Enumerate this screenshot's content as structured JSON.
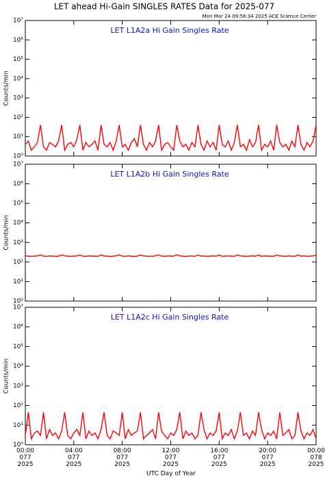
{
  "title": "LET ahead Hi-Gain SINGLES RATES Data for 2025-077",
  "subtitle": "Mon Mar 24 09:56:34 2025 ACE Science Center",
  "x_label": "UTC Day of Year",
  "chart_data": [
    {
      "type": "line",
      "title": "LET L1A2a Hi Gain Singles Rate",
      "y_label": "Counts/min",
      "log_y": true,
      "xlim": [
        0,
        24
      ],
      "ylim": [
        1,
        10000000
      ],
      "yticks": [
        {
          "value": 1,
          "label": "10⁰"
        },
        {
          "value": 10,
          "label": "10¹"
        },
        {
          "value": 100,
          "label": "10²"
        },
        {
          "value": 1000,
          "label": "10³"
        },
        {
          "value": 10000,
          "label": "10⁴"
        },
        {
          "value": 100000,
          "label": "10⁵"
        },
        {
          "value": 1000000,
          "label": "10⁶"
        },
        {
          "value": 10000000,
          "label": "10⁷"
        }
      ],
      "x": [
        0,
        0.25,
        0.5,
        0.75,
        1,
        1.25,
        1.5,
        1.75,
        2,
        2.25,
        2.5,
        2.75,
        3,
        3.25,
        3.5,
        3.75,
        4,
        4.25,
        4.5,
        4.75,
        5,
        5.25,
        5.5,
        5.75,
        6,
        6.25,
        6.5,
        6.75,
        7,
        7.25,
        7.5,
        7.75,
        8,
        8.25,
        8.5,
        8.75,
        9,
        9.25,
        9.5,
        9.75,
        10,
        10.25,
        10.5,
        10.75,
        11,
        11.25,
        11.5,
        11.75,
        12,
        12.25,
        12.5,
        12.75,
        13,
        13.25,
        13.5,
        13.75,
        14,
        14.25,
        14.5,
        14.75,
        15,
        15.25,
        15.5,
        15.75,
        16,
        16.25,
        16.5,
        16.75,
        17,
        17.25,
        17.5,
        17.75,
        18,
        18.25,
        18.5,
        18.75,
        19,
        19.25,
        19.5,
        19.75,
        20,
        20.25,
        20.5,
        20.75,
        21,
        21.25,
        21.5,
        21.75,
        22,
        22.25,
        22.5,
        22.75,
        23,
        23.25,
        23.5,
        23.75,
        24
      ],
      "series": [
        {
          "color": "#ff0000",
          "values": [
            4,
            6,
            2,
            3,
            5,
            40,
            3,
            2,
            5,
            4,
            3,
            6,
            40,
            2,
            4,
            5,
            3,
            7,
            40,
            2,
            5,
            3,
            4,
            6,
            2,
            40,
            4,
            3,
            5,
            2,
            6,
            40,
            3,
            4,
            2,
            5,
            8,
            3,
            40,
            4,
            2,
            5,
            3,
            6,
            40,
            2,
            4,
            5,
            3,
            2,
            40,
            6,
            3,
            4,
            2,
            5,
            3,
            40,
            4,
            2,
            6,
            3,
            5,
            2,
            40,
            4,
            3,
            6,
            2,
            5,
            40,
            3,
            4,
            2,
            7,
            3,
            5,
            40,
            2,
            4,
            3,
            6,
            2,
            40,
            5,
            3,
            4,
            2,
            6,
            3,
            40,
            4,
            2,
            5,
            3,
            6,
            40
          ]
        }
      ]
    },
    {
      "type": "line",
      "title": "LET L1A2b Hi Gain Singles Rate",
      "y_label": "Counts/min",
      "log_y": true,
      "xlim": [
        0,
        24
      ],
      "ylim": [
        1,
        10000000
      ],
      "yticks": [
        {
          "value": 1,
          "label": "10⁰"
        },
        {
          "value": 10,
          "label": "10¹"
        },
        {
          "value": 100,
          "label": "10²"
        },
        {
          "value": 1000,
          "label": "10³"
        },
        {
          "value": 10000,
          "label": "10⁴"
        },
        {
          "value": 100000,
          "label": "10⁵"
        },
        {
          "value": 1000000,
          "label": "10⁶"
        },
        {
          "value": 10000000,
          "label": "10⁷"
        }
      ],
      "x": [
        0,
        0.25,
        0.5,
        0.75,
        1,
        1.25,
        1.5,
        1.75,
        2,
        2.25,
        2.5,
        2.75,
        3,
        3.25,
        3.5,
        3.75,
        4,
        4.25,
        4.5,
        4.75,
        5,
        5.25,
        5.5,
        5.75,
        6,
        6.25,
        6.5,
        6.75,
        7,
        7.25,
        7.5,
        7.75,
        8,
        8.25,
        8.5,
        8.75,
        9,
        9.25,
        9.5,
        9.75,
        10,
        10.25,
        10.5,
        10.75,
        11,
        11.25,
        11.5,
        11.75,
        12,
        12.25,
        12.5,
        12.75,
        13,
        13.25,
        13.5,
        13.75,
        14,
        14.25,
        14.5,
        14.75,
        15,
        15.25,
        15.5,
        15.75,
        16,
        16.25,
        16.5,
        16.75,
        17,
        17.25,
        17.5,
        17.75,
        18,
        18.25,
        18.5,
        18.75,
        19,
        19.25,
        19.5,
        19.75,
        20,
        20.25,
        20.5,
        20.75,
        21,
        21.25,
        21.5,
        21.75,
        22,
        22.25,
        22.5,
        22.75,
        23,
        23.25,
        23.5,
        23.75,
        24
      ],
      "series": [
        {
          "color": "#ff0000",
          "values": [
            205,
            200,
            195,
            200,
            205,
            230,
            200,
            195,
            205,
            200,
            195,
            200,
            230,
            205,
            200,
            195,
            200,
            205,
            230,
            200,
            195,
            205,
            200,
            200,
            195,
            230,
            205,
            200,
            195,
            200,
            205,
            230,
            200,
            195,
            205,
            200,
            195,
            200,
            230,
            205,
            200,
            195,
            200,
            205,
            230,
            200,
            195,
            205,
            200,
            200,
            230,
            205,
            200,
            195,
            200,
            205,
            195,
            230,
            200,
            205,
            195,
            200,
            205,
            200,
            230,
            195,
            200,
            205,
            200,
            195,
            230,
            205,
            200,
            195,
            200,
            205,
            200,
            230,
            195,
            205,
            200,
            200,
            195,
            230,
            205,
            200,
            195,
            205,
            200,
            195,
            230,
            200,
            205,
            195,
            200,
            205,
            230
          ]
        }
      ]
    },
    {
      "type": "line",
      "title": "LET L1A2c Hi Gain Singles Rate",
      "y_label": "Counts/min",
      "log_y": true,
      "xlim": [
        0,
        24
      ],
      "ylim": [
        1,
        10000000
      ],
      "yticks": [
        {
          "value": 1,
          "label": "10⁰"
        },
        {
          "value": 10,
          "label": "10¹"
        },
        {
          "value": 100,
          "label": "10²"
        },
        {
          "value": 1000,
          "label": "10³"
        },
        {
          "value": 10000,
          "label": "10⁴"
        },
        {
          "value": 100000,
          "label": "10⁵"
        },
        {
          "value": 1000000,
          "label": "10⁶"
        },
        {
          "value": 10000000,
          "label": "10⁷"
        }
      ],
      "xticks": [
        {
          "value": 0,
          "label": "00:00\n077\n2025"
        },
        {
          "value": 4,
          "label": "04:00\n077\n2025"
        },
        {
          "value": 8,
          "label": "08:00\n077\n2025"
        },
        {
          "value": 12,
          "label": "12:00\n077\n2025"
        },
        {
          "value": 16,
          "label": "16:00\n077\n2025"
        },
        {
          "value": 20,
          "label": "20:00\n077\n2025"
        },
        {
          "value": 24,
          "label": "00:00\n078\n2025"
        }
      ],
      "x": [
        0,
        0.25,
        0.5,
        0.75,
        1,
        1.25,
        1.5,
        1.75,
        2,
        2.25,
        2.5,
        2.75,
        3,
        3.25,
        3.5,
        3.75,
        4,
        4.25,
        4.5,
        4.75,
        5,
        5.25,
        5.5,
        5.75,
        6,
        6.25,
        6.5,
        6.75,
        7,
        7.25,
        7.5,
        7.75,
        8,
        8.25,
        8.5,
        8.75,
        9,
        9.25,
        9.5,
        9.75,
        10,
        10.25,
        10.5,
        10.75,
        11,
        11.25,
        11.5,
        11.75,
        12,
        12.25,
        12.5,
        12.75,
        13,
        13.25,
        13.5,
        13.75,
        14,
        14.25,
        14.5,
        14.75,
        15,
        15.25,
        15.5,
        15.75,
        16,
        16.25,
        16.5,
        16.75,
        17,
        17.25,
        17.5,
        17.75,
        18,
        18.25,
        18.5,
        18.75,
        19,
        19.25,
        19.5,
        19.75,
        20,
        20.25,
        20.5,
        20.75,
        21,
        21.25,
        21.5,
        21.75,
        22,
        22.25,
        22.5,
        22.75,
        23,
        23.25,
        23.5,
        23.75,
        24
      ],
      "series": [
        {
          "color": "#ff0000",
          "values": [
            3,
            45,
            2,
            4,
            5,
            3,
            45,
            2,
            6,
            3,
            4,
            2,
            5,
            45,
            3,
            2,
            4,
            6,
            3,
            45,
            2,
            5,
            3,
            4,
            2,
            6,
            45,
            3,
            2,
            5,
            4,
            3,
            45,
            2,
            6,
            3,
            4,
            5,
            45,
            2,
            3,
            4,
            6,
            2,
            45,
            5,
            3,
            2,
            4,
            3,
            6,
            45,
            2,
            5,
            3,
            4,
            2,
            3,
            45,
            6,
            2,
            4,
            3,
            5,
            45,
            2,
            4,
            3,
            6,
            2,
            5,
            45,
            3,
            4,
            2,
            5,
            3,
            45,
            6,
            2,
            4,
            3,
            5,
            2,
            45,
            3,
            4,
            6,
            2,
            3,
            45,
            5,
            2,
            4,
            3,
            6,
            2
          ]
        }
      ]
    }
  ]
}
